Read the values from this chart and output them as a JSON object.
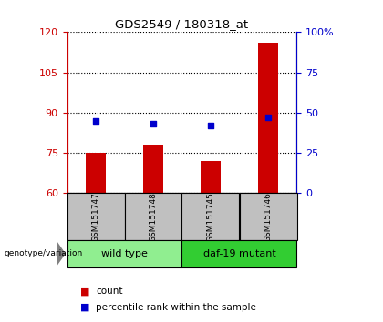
{
  "title": "GDS2549 / 180318_at",
  "samples": [
    "GSM151747",
    "GSM151748",
    "GSM151745",
    "GSM151746"
  ],
  "counts": [
    75,
    78,
    72,
    116
  ],
  "percentiles_pct": [
    45,
    43,
    42,
    47
  ],
  "ylim_left": [
    60,
    120
  ],
  "ylim_right": [
    0,
    100
  ],
  "yticks_left": [
    60,
    75,
    90,
    105,
    120
  ],
  "yticks_right": [
    0,
    25,
    50,
    75,
    100
  ],
  "groups": [
    {
      "label": "wild type",
      "indices": [
        0,
        1
      ],
      "color": "#90EE90"
    },
    {
      "label": "daf-19 mutant",
      "indices": [
        2,
        3
      ],
      "color": "#32CD32"
    }
  ],
  "bar_color": "#CC0000",
  "dot_color": "#0000CC",
  "bar_width": 0.35,
  "left_axis_color": "#CC0000",
  "right_axis_color": "#0000CC",
  "background_label": "#C0C0C0",
  "legend_count_label": "count",
  "legend_percentile_label": "percentile rank within the sample",
  "genotype_label": "genotype/variation"
}
